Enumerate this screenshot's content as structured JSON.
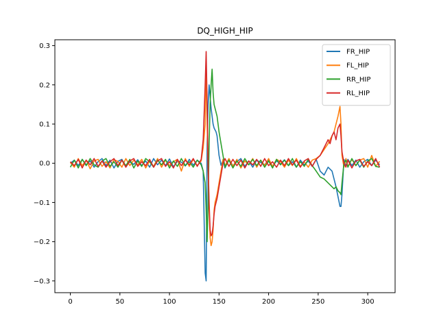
{
  "chart_data": {
    "type": "line",
    "title": "DQ_HIGH_HIP",
    "xlabel": "",
    "ylabel": "",
    "xlim": [
      -15.6,
      327.6
    ],
    "ylim": [
      -0.33,
      0.315
    ],
    "xticks": [
      0,
      50,
      100,
      150,
      200,
      250,
      300
    ],
    "yticks": [
      -0.3,
      -0.2,
      -0.1,
      0.0,
      0.1,
      0.2,
      0.3
    ],
    "ytick_labels": [
      "−0.3",
      "−0.2",
      "−0.1",
      "0.0",
      "0.1",
      "0.2",
      "0.3"
    ],
    "legend": "top-right",
    "grid": false,
    "series": [
      {
        "name": "FR_HIP",
        "color": "#1f77b4",
        "x": [
          0,
          4,
          8,
          12,
          16,
          20,
          24,
          28,
          32,
          36,
          40,
          44,
          48,
          52,
          56,
          60,
          64,
          68,
          72,
          76,
          80,
          84,
          88,
          92,
          96,
          100,
          104,
          108,
          112,
          116,
          120,
          124,
          128,
          132,
          134,
          136,
          137,
          138,
          139,
          140,
          141,
          142,
          143,
          144,
          145,
          146,
          147,
          148,
          150,
          152,
          154,
          156,
          160,
          164,
          168,
          172,
          176,
          180,
          184,
          188,
          192,
          196,
          200,
          204,
          208,
          212,
          216,
          220,
          224,
          228,
          232,
          236,
          240,
          244,
          248,
          252,
          256,
          260,
          262,
          264,
          266,
          268,
          270,
          272,
          273,
          274,
          276,
          278,
          280,
          284,
          288,
          292,
          296,
          300,
          304,
          308,
          312
        ],
        "y": [
          0.0,
          0.008,
          -0.006,
          0.01,
          -0.004,
          0.006,
          -0.01,
          0.004,
          0.012,
          -0.006,
          0.008,
          -0.012,
          0.005,
          0.01,
          -0.008,
          0.004,
          -0.003,
          0.009,
          -0.006,
          0.006,
          -0.01,
          0.012,
          -0.004,
          0.008,
          -0.006,
          0.011,
          -0.009,
          0.005,
          0.003,
          -0.007,
          0.01,
          -0.005,
          0.008,
          0.0,
          -0.02,
          -0.28,
          -0.3,
          0.05,
          0.15,
          0.2,
          0.17,
          0.14,
          0.12,
          0.1,
          0.09,
          0.085,
          0.08,
          0.07,
          0.02,
          -0.005,
          0.008,
          -0.012,
          0.01,
          -0.006,
          0.004,
          0.012,
          -0.008,
          0.006,
          -0.01,
          0.008,
          0.002,
          -0.004,
          0.01,
          -0.008,
          0.006,
          -0.002,
          0.009,
          -0.006,
          0.004,
          -0.01,
          0.008,
          -0.004,
          0.006,
          -0.008,
          0.01,
          -0.02,
          -0.03,
          -0.01,
          -0.015,
          -0.02,
          -0.04,
          -0.06,
          -0.085,
          -0.11,
          -0.11,
          -0.08,
          0.01,
          -0.008,
          0.01,
          -0.006,
          0.008,
          -0.01,
          0.004,
          0.01,
          -0.006,
          0.008,
          -0.004
        ]
      },
      {
        "name": "FL_HIP",
        "color": "#ff7f0e",
        "x": [
          0,
          4,
          8,
          12,
          16,
          20,
          24,
          28,
          32,
          36,
          40,
          44,
          48,
          52,
          56,
          60,
          64,
          68,
          72,
          76,
          80,
          84,
          88,
          92,
          96,
          100,
          104,
          108,
          112,
          116,
          120,
          124,
          128,
          132,
          134,
          136,
          137,
          138,
          139,
          140,
          141,
          142,
          143,
          144,
          145,
          146,
          147,
          148,
          150,
          152,
          154,
          156,
          160,
          164,
          168,
          172,
          176,
          180,
          184,
          188,
          192,
          196,
          200,
          204,
          208,
          212,
          216,
          220,
          224,
          228,
          232,
          236,
          240,
          244,
          248,
          252,
          256,
          260,
          262,
          264,
          266,
          268,
          270,
          272,
          273,
          274,
          276,
          278,
          280,
          284,
          288,
          292,
          296,
          300,
          304,
          308,
          312
        ],
        "y": [
          0.002,
          -0.01,
          0.012,
          -0.006,
          0.008,
          -0.014,
          0.006,
          0.01,
          -0.008,
          0.004,
          -0.012,
          0.009,
          0.005,
          -0.01,
          0.012,
          -0.006,
          0.008,
          -0.004,
          0.01,
          -0.012,
          0.006,
          -0.008,
          0.012,
          -0.01,
          0.008,
          -0.006,
          0.004,
          0.01,
          -0.02,
          0.012,
          -0.008,
          0.01,
          -0.006,
          0.006,
          0.04,
          0.1,
          0.26,
          0.1,
          -0.02,
          -0.12,
          -0.19,
          -0.21,
          -0.2,
          -0.17,
          -0.12,
          -0.1,
          -0.09,
          -0.08,
          -0.05,
          -0.02,
          0.01,
          -0.006,
          0.012,
          -0.008,
          0.01,
          -0.012,
          0.006,
          -0.004,
          0.012,
          -0.01,
          0.008,
          -0.006,
          0.012,
          -0.008,
          0.01,
          0.004,
          -0.01,
          0.008,
          -0.006,
          0.012,
          -0.008,
          0.004,
          -0.01,
          0.008,
          0.012,
          0.02,
          0.035,
          0.05,
          0.06,
          0.07,
          0.08,
          0.1,
          0.12,
          0.145,
          0.1,
          0.02,
          -0.01,
          0.012,
          -0.008,
          0.01,
          -0.006,
          0.008,
          0.012,
          -0.01,
          0.02,
          -0.008,
          0.005
        ]
      },
      {
        "name": "RR_HIP",
        "color": "#2ca02c",
        "x": [
          0,
          4,
          8,
          12,
          16,
          20,
          24,
          28,
          32,
          36,
          40,
          44,
          48,
          52,
          56,
          60,
          64,
          68,
          72,
          76,
          80,
          84,
          88,
          92,
          96,
          100,
          104,
          108,
          112,
          116,
          120,
          124,
          128,
          132,
          134,
          136,
          137,
          138,
          139,
          140,
          141,
          142,
          143,
          144,
          145,
          146,
          147,
          148,
          150,
          152,
          154,
          156,
          160,
          164,
          168,
          172,
          176,
          180,
          184,
          188,
          192,
          196,
          200,
          204,
          208,
          212,
          216,
          220,
          224,
          228,
          232,
          236,
          240,
          244,
          248,
          252,
          256,
          260,
          262,
          264,
          266,
          268,
          270,
          272,
          273,
          274,
          276,
          278,
          280,
          284,
          288,
          292,
          296,
          300,
          304,
          308,
          312
        ],
        "y": [
          -0.01,
          0.008,
          -0.012,
          0.01,
          -0.006,
          0.012,
          -0.004,
          -0.01,
          0.006,
          0.012,
          -0.008,
          0.004,
          -0.01,
          0.008,
          -0.006,
          0.01,
          -0.012,
          0.006,
          -0.008,
          0.012,
          0.004,
          -0.01,
          0.008,
          -0.004,
          0.01,
          -0.012,
          0.006,
          -0.008,
          0.012,
          -0.006,
          0.004,
          -0.01,
          0.008,
          -0.004,
          -0.02,
          -0.05,
          -0.12,
          -0.2,
          -0.1,
          0.05,
          0.15,
          0.2,
          0.24,
          0.18,
          0.15,
          0.14,
          0.13,
          0.12,
          0.08,
          0.05,
          0.02,
          -0.01,
          0.008,
          -0.012,
          0.006,
          -0.008,
          0.012,
          -0.004,
          0.01,
          -0.006,
          0.008,
          -0.01,
          0.006,
          -0.012,
          0.01,
          -0.004,
          0.008,
          -0.006,
          0.012,
          -0.01,
          0.004,
          -0.008,
          0.01,
          -0.006,
          -0.02,
          -0.035,
          -0.04,
          -0.05,
          -0.055,
          -0.06,
          -0.065,
          -0.06,
          -0.07,
          -0.075,
          -0.08,
          -0.05,
          0.0,
          0.008,
          -0.01,
          0.012,
          -0.006,
          0.008,
          -0.01,
          0.006,
          0.012,
          -0.008,
          -0.01
        ]
      },
      {
        "name": "RL_HIP",
        "color": "#d62728",
        "x": [
          0,
          4,
          8,
          12,
          16,
          20,
          24,
          28,
          32,
          36,
          40,
          44,
          48,
          52,
          56,
          60,
          64,
          68,
          72,
          76,
          80,
          84,
          88,
          92,
          96,
          100,
          104,
          108,
          112,
          116,
          120,
          124,
          128,
          132,
          134,
          136,
          137,
          138,
          139,
          140,
          141,
          142,
          143,
          144,
          145,
          146,
          147,
          148,
          150,
          152,
          154,
          156,
          160,
          164,
          168,
          172,
          176,
          180,
          184,
          188,
          192,
          196,
          200,
          204,
          208,
          212,
          216,
          220,
          224,
          228,
          232,
          236,
          240,
          244,
          248,
          252,
          256,
          260,
          262,
          264,
          266,
          268,
          270,
          272,
          273,
          274,
          276,
          278,
          280,
          284,
          288,
          292,
          296,
          300,
          304,
          308,
          312
        ],
        "y": [
          0.004,
          -0.006,
          0.01,
          -0.012,
          0.008,
          -0.004,
          0.012,
          -0.008,
          0.006,
          -0.01,
          0.004,
          0.012,
          -0.006,
          0.008,
          -0.01,
          0.006,
          0.012,
          -0.008,
          0.004,
          -0.006,
          0.01,
          -0.01,
          0.006,
          0.012,
          -0.008,
          0.004,
          -0.012,
          0.01,
          -0.006,
          0.008,
          -0.004,
          0.012,
          -0.008,
          0.01,
          0.06,
          0.2,
          0.285,
          0.15,
          0.0,
          -0.1,
          -0.17,
          -0.185,
          -0.18,
          -0.16,
          -0.13,
          -0.11,
          -0.1,
          -0.09,
          -0.06,
          -0.03,
          0.0,
          0.012,
          -0.008,
          0.01,
          -0.006,
          0.008,
          -0.012,
          0.006,
          -0.004,
          0.01,
          -0.008,
          0.012,
          -0.006,
          0.004,
          -0.01,
          0.008,
          -0.006,
          0.012,
          -0.004,
          0.008,
          -0.01,
          0.006,
          0.012,
          -0.008,
          0.01,
          0.02,
          0.04,
          0.06,
          0.05,
          0.07,
          0.08,
          0.06,
          0.09,
          0.1,
          0.07,
          0.03,
          0.0,
          -0.01,
          0.008,
          -0.012,
          0.006,
          0.01,
          -0.008,
          0.004,
          -0.006,
          0.012,
          -0.01
        ]
      }
    ]
  }
}
